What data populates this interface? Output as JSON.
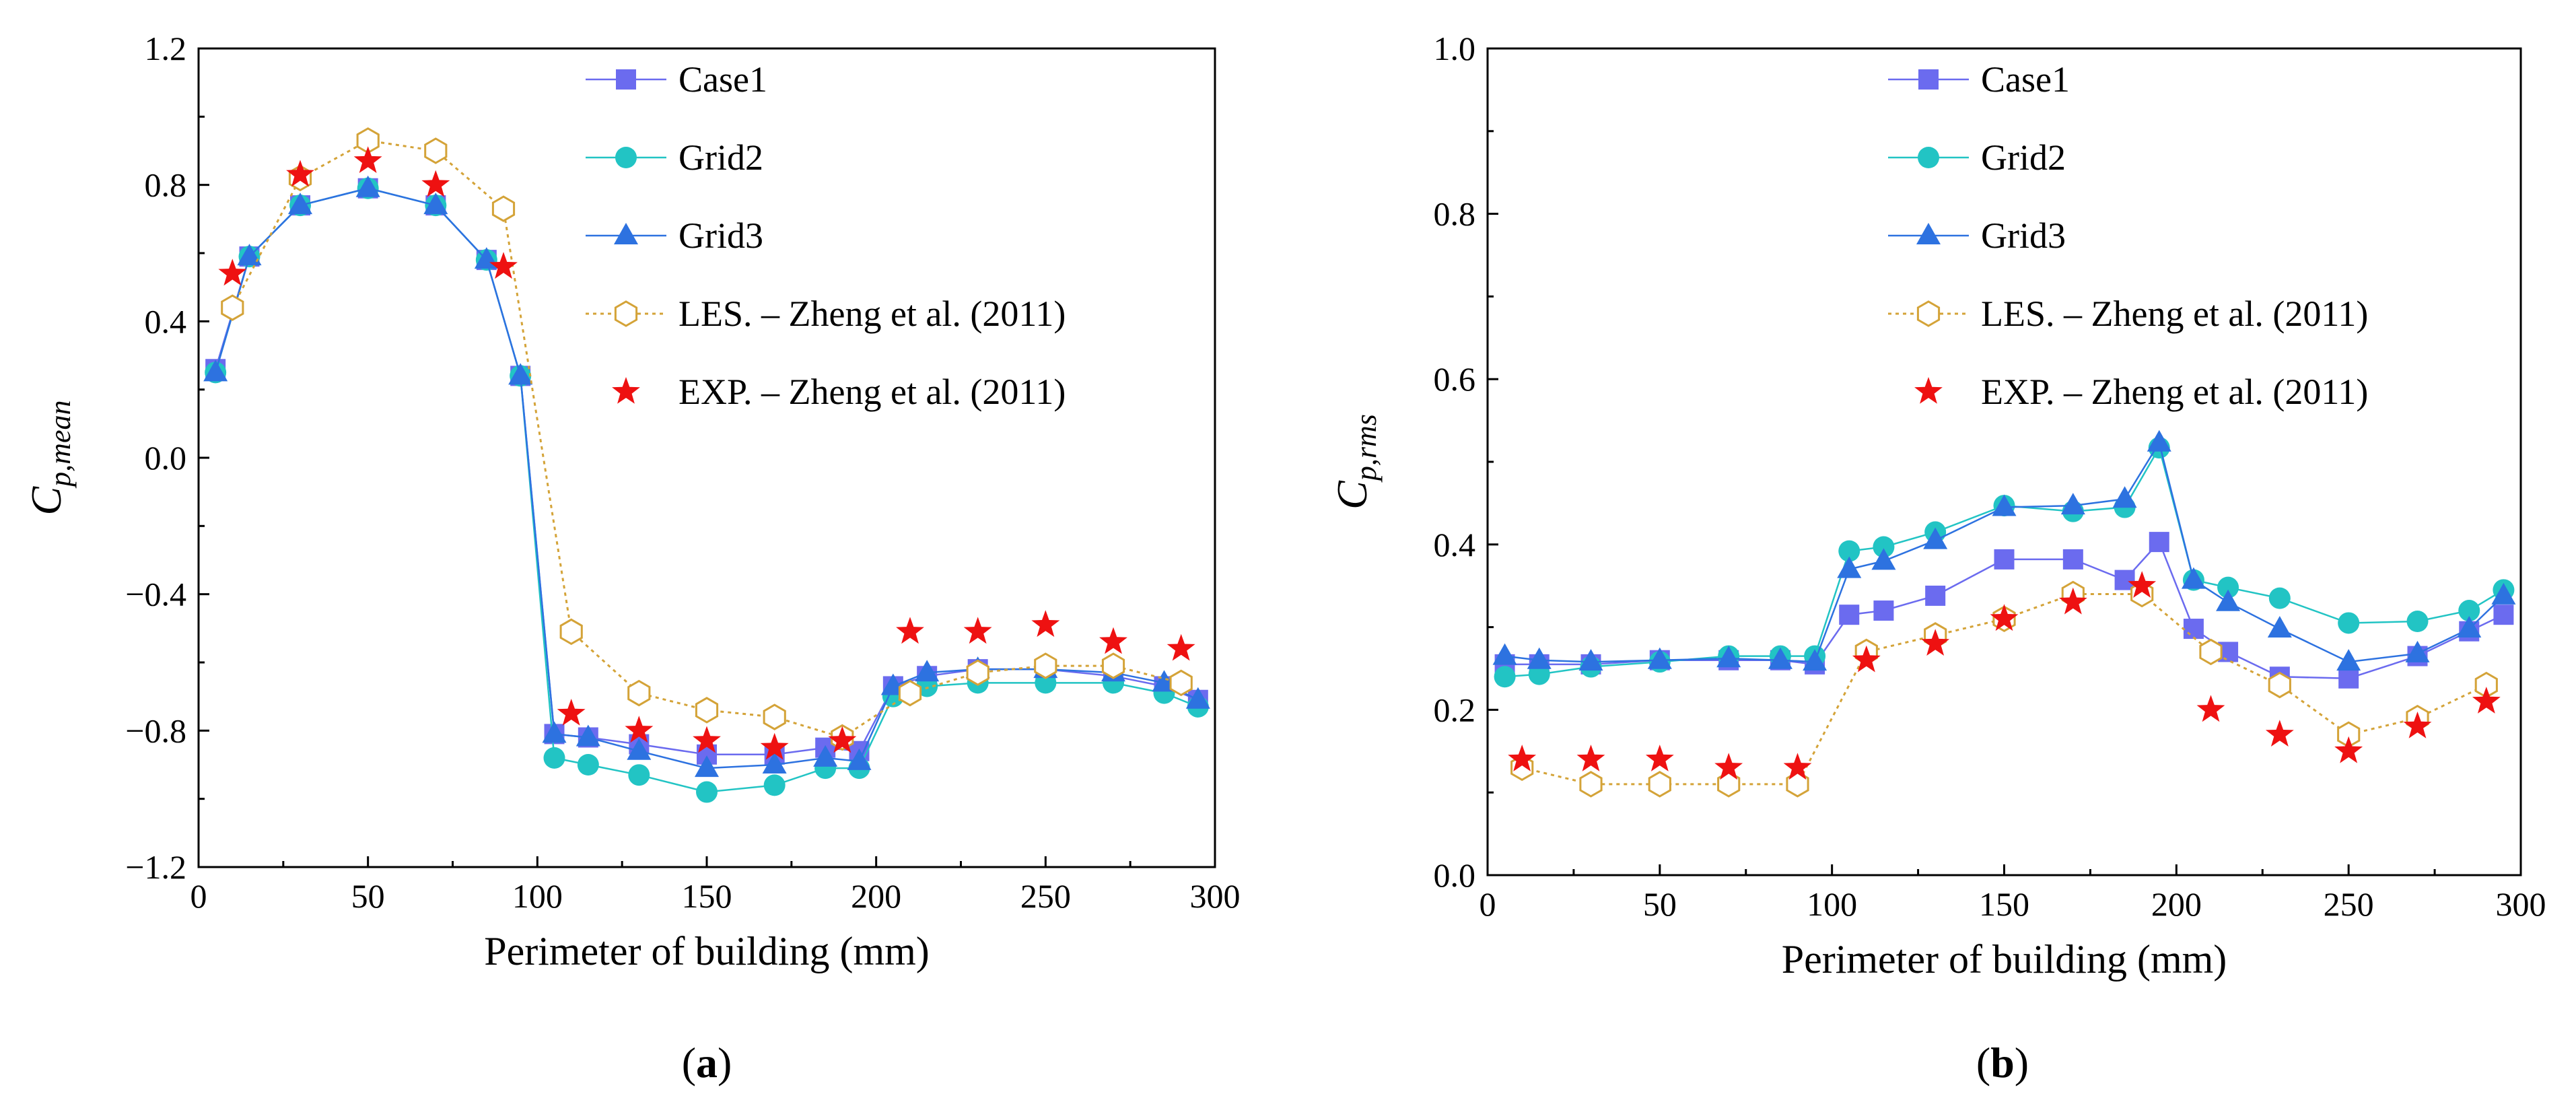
{
  "chart_data": [
    {
      "panel": "(a)",
      "panel_letter": "a",
      "type": "line",
      "xlabel": "Perimeter of building  (mm)",
      "ylabel_main": "C",
      "ylabel_sub": "p,mean",
      "xlim": [
        0,
        300
      ],
      "ylim": [
        -1.2,
        1.2
      ],
      "xticks": [
        0,
        50,
        100,
        150,
        200,
        250,
        300
      ],
      "xtick_labels": [
        "0",
        "50",
        "100",
        "150",
        "200",
        "250",
        "300"
      ],
      "yticks": [
        -1.2,
        -0.8,
        -0.4,
        0.0,
        0.4,
        0.8,
        1.2
      ],
      "ytick_labels": [
        "−1.2",
        "−0.8",
        "−0.4",
        "0.0",
        "0.4",
        "0.8",
        "1.2"
      ],
      "legend_position": "top-right",
      "series": [
        {
          "name": "Case1",
          "marker": "square",
          "color": "#6b6bef",
          "line": "solid",
          "x": [
            5,
            15,
            30,
            50,
            70,
            85,
            95,
            105,
            115,
            130,
            150,
            170,
            185,
            195,
            205,
            215,
            230,
            250,
            270,
            285,
            295
          ],
          "y": [
            0.26,
            0.59,
            0.74,
            0.79,
            0.74,
            0.58,
            0.24,
            -0.81,
            -0.82,
            -0.84,
            -0.87,
            -0.87,
            -0.85,
            -0.86,
            -0.67,
            -0.64,
            -0.62,
            -0.62,
            -0.64,
            -0.67,
            -0.71
          ]
        },
        {
          "name": "Grid2",
          "marker": "circle",
          "color": "#22c4c4",
          "line": "solid",
          "x": [
            5,
            15,
            30,
            50,
            70,
            85,
            95,
            105,
            115,
            130,
            150,
            170,
            185,
            195,
            205,
            215,
            230,
            250,
            270,
            285,
            295
          ],
          "y": [
            0.25,
            0.59,
            0.74,
            0.79,
            0.74,
            0.58,
            0.24,
            -0.88,
            -0.9,
            -0.93,
            -0.98,
            -0.96,
            -0.91,
            -0.91,
            -0.7,
            -0.67,
            -0.66,
            -0.66,
            -0.66,
            -0.69,
            -0.73
          ]
        },
        {
          "name": "Grid3",
          "marker": "triangle",
          "color": "#2d72e0",
          "line": "solid",
          "x": [
            5,
            15,
            30,
            50,
            70,
            85,
            95,
            105,
            115,
            130,
            150,
            170,
            185,
            195,
            205,
            215,
            230,
            250,
            270,
            285,
            295
          ],
          "y": [
            0.25,
            0.59,
            0.74,
            0.79,
            0.74,
            0.58,
            0.24,
            -0.81,
            -0.82,
            -0.86,
            -0.91,
            -0.9,
            -0.88,
            -0.89,
            -0.67,
            -0.63,
            -0.62,
            -0.62,
            -0.63,
            -0.66,
            -0.71
          ]
        },
        {
          "name": "LES. – Zheng et al. (2011)",
          "marker": "hexagon",
          "color": "#d4a338",
          "line": "dotted",
          "x": [
            10,
            30,
            50,
            70,
            90,
            110,
            130,
            150,
            170,
            190,
            210,
            230,
            250,
            270,
            290
          ],
          "y": [
            0.44,
            0.82,
            0.93,
            0.9,
            0.73,
            -0.51,
            -0.69,
            -0.74,
            -0.76,
            -0.82,
            -0.69,
            -0.63,
            -0.61,
            -0.61,
            -0.66
          ]
        },
        {
          "name": "EXP. – Zheng et al. (2011)",
          "marker": "star",
          "color": "#ee1111",
          "line": "none",
          "x": [
            10,
            30,
            50,
            70,
            90,
            110,
            130,
            150,
            170,
            190,
            210,
            230,
            250,
            270,
            290
          ],
          "y": [
            0.54,
            0.83,
            0.87,
            0.8,
            0.56,
            -0.75,
            -0.8,
            -0.83,
            -0.85,
            -0.83,
            -0.51,
            -0.51,
            -0.49,
            -0.54,
            -0.56
          ]
        }
      ]
    },
    {
      "panel": "(b)",
      "panel_letter": "b",
      "type": "line",
      "xlabel": "Perimeter of building (mm)",
      "ylabel_main": "C",
      "ylabel_sub": "p,rms",
      "xlim": [
        0,
        300
      ],
      "ylim": [
        0.0,
        1.0
      ],
      "xticks": [
        0,
        50,
        100,
        150,
        200,
        250,
        300
      ],
      "xtick_labels": [
        "0",
        "50",
        "100",
        "150",
        "200",
        "250",
        "300"
      ],
      "yticks": [
        0.0,
        0.2,
        0.4,
        0.6,
        0.8,
        1.0
      ],
      "ytick_labels": [
        "0.0",
        "0.2",
        "0.4",
        "0.6",
        "0.8",
        "1.0"
      ],
      "legend_position": "top-right",
      "series": [
        {
          "name": "Case1",
          "marker": "square",
          "color": "#6b6bef",
          "line": "solid",
          "x": [
            5,
            15,
            30,
            50,
            70,
            85,
            95,
            105,
            115,
            130,
            150,
            170,
            185,
            195,
            205,
            215,
            230,
            250,
            270,
            285,
            295
          ],
          "y": [
            0.255,
            0.255,
            0.255,
            0.26,
            0.26,
            0.26,
            0.255,
            0.315,
            0.32,
            0.338,
            0.382,
            0.382,
            0.357,
            0.403,
            0.298,
            0.27,
            0.24,
            0.238,
            0.265,
            0.295,
            0.315
          ]
        },
        {
          "name": "Grid2",
          "marker": "circle",
          "color": "#22c4c4",
          "line": "solid",
          "x": [
            5,
            15,
            30,
            50,
            70,
            85,
            95,
            105,
            115,
            130,
            150,
            170,
            185,
            195,
            205,
            215,
            230,
            250,
            270,
            285,
            295
          ],
          "y": [
            0.24,
            0.243,
            0.252,
            0.258,
            0.265,
            0.265,
            0.265,
            0.392,
            0.397,
            0.415,
            0.447,
            0.44,
            0.445,
            0.517,
            0.357,
            0.348,
            0.335,
            0.305,
            0.307,
            0.32,
            0.345
          ]
        },
        {
          "name": "Grid3",
          "marker": "triangle",
          "color": "#2d72e0",
          "line": "solid",
          "x": [
            5,
            15,
            30,
            50,
            70,
            85,
            95,
            105,
            115,
            130,
            150,
            170,
            185,
            195,
            205,
            215,
            230,
            250,
            270,
            285,
            295
          ],
          "y": [
            0.265,
            0.26,
            0.258,
            0.26,
            0.262,
            0.26,
            0.258,
            0.37,
            0.38,
            0.405,
            0.445,
            0.447,
            0.455,
            0.523,
            0.357,
            0.33,
            0.298,
            0.258,
            0.268,
            0.298,
            0.338
          ]
        },
        {
          "name": "LES. – Zheng et al. (2011)",
          "marker": "hexagon",
          "color": "#d4a338",
          "line": "dotted",
          "x": [
            10,
            30,
            50,
            70,
            90,
            110,
            130,
            150,
            170,
            190,
            210,
            230,
            250,
            270,
            290
          ],
          "y": [
            0.13,
            0.11,
            0.11,
            0.11,
            0.11,
            0.27,
            0.29,
            0.31,
            0.34,
            0.34,
            0.27,
            0.23,
            0.17,
            0.19,
            0.23
          ]
        },
        {
          "name": "EXP. – Zheng et al. (2011)",
          "marker": "star",
          "color": "#ee1111",
          "line": "none",
          "x": [
            10,
            30,
            50,
            70,
            90,
            110,
            130,
            150,
            170,
            190,
            210,
            230,
            250,
            270,
            290
          ],
          "y": [
            0.14,
            0.14,
            0.14,
            0.13,
            0.13,
            0.26,
            0.28,
            0.31,
            0.33,
            0.35,
            0.2,
            0.17,
            0.15,
            0.18,
            0.21
          ]
        }
      ]
    }
  ]
}
